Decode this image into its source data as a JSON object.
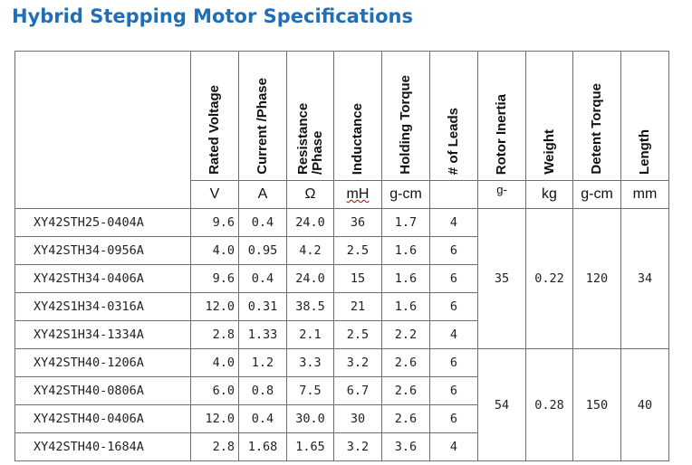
{
  "title": "Hybrid Stepping Motor Specifications",
  "columns": [
    {
      "label": "Rated Voltage",
      "unit": "V"
    },
    {
      "label": "Current /Phase",
      "unit": "A"
    },
    {
      "label": "Resistance /Phase",
      "unit": "Ω"
    },
    {
      "label": "Inductance",
      "unit": "mH"
    },
    {
      "label": "Holding Torque",
      "unit": "g-cm"
    },
    {
      "label": "# of Leads",
      "unit": ""
    },
    {
      "label": "Rotor Inertia",
      "unit": "g-"
    },
    {
      "label": "Weight",
      "unit": "kg"
    },
    {
      "label": "Detent Torque",
      "unit": "g-cm"
    },
    {
      "label": "Length",
      "unit": "mm"
    }
  ],
  "rows": [
    {
      "model": "XY42STH25-0404A",
      "voltage": "9.6",
      "current": "0.4",
      "resistance": "24.0",
      "inductance": "36",
      "torque": "1.7",
      "leads": "4"
    },
    {
      "model": "XY42STH34-0956A",
      "voltage": "4.0",
      "current": "0.95",
      "resistance": "4.2",
      "inductance": "2.5",
      "torque": "1.6",
      "leads": "6"
    },
    {
      "model": "XY42STH34-0406A",
      "voltage": "9.6",
      "current": "0.4",
      "resistance": "24.0",
      "inductance": "15",
      "torque": "1.6",
      "leads": "6"
    },
    {
      "model": "XY42S1H34-0316A",
      "voltage": "12.0",
      "current": "0.31",
      "resistance": "38.5",
      "inductance": "21",
      "torque": "1.6",
      "leads": "6"
    },
    {
      "model": "XY42S1H34-1334A",
      "voltage": "2.8",
      "current": "1.33",
      "resistance": "2.1",
      "inductance": "2.5",
      "torque": "2.2",
      "leads": "4"
    },
    {
      "model": "XY42STH40-1206A",
      "voltage": "4.0",
      "current": "1.2",
      "resistance": "3.3",
      "inductance": "3.2",
      "torque": "2.6",
      "leads": "6"
    },
    {
      "model": "XY42STH40-0806A",
      "voltage": "6.0",
      "current": "0.8",
      "resistance": "7.5",
      "inductance": "6.7",
      "torque": "2.6",
      "leads": "6"
    },
    {
      "model": "XY42STH40-0406A",
      "voltage": "12.0",
      "current": "0.4",
      "resistance": "30.0",
      "inductance": "30",
      "torque": "2.6",
      "leads": "6"
    },
    {
      "model": "XY42STH40-1684A",
      "voltage": "2.8",
      "current": "1.68",
      "resistance": "1.65",
      "inductance": "3.2",
      "torque": "3.6",
      "leads": "4"
    }
  ],
  "groups": [
    {
      "rotor_inertia": "35",
      "weight": "0.22",
      "detent_torque": "120",
      "length": "34"
    },
    {
      "rotor_inertia": "54",
      "weight": "0.28",
      "detent_torque": "150",
      "length": "40"
    }
  ]
}
